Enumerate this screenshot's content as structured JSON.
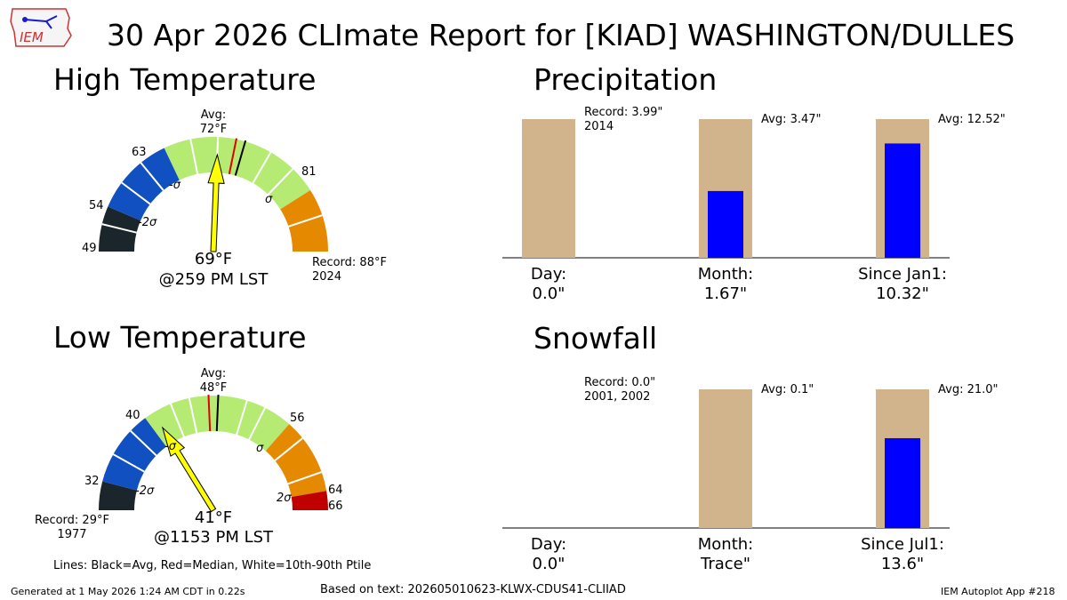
{
  "title": "30 Apr 2026 CLImate Report for [KIAD] WASHINGTON/DULLES",
  "logo_text": "IEM",
  "high": {
    "heading": "High Temperature",
    "avg_line1": "Avg:",
    "avg_line2": "72°F",
    "value_text": "69°F",
    "time_text": "@259 PM LST",
    "record_line1": "Record: 88°F",
    "record_line2": "2024",
    "ticks": [
      "49",
      "54",
      "63",
      "81"
    ],
    "sigma_labels": [
      "-2σ",
      "-σ",
      "σ"
    ],
    "gauge": {
      "min": 49,
      "max": 88,
      "avg": 72,
      "median": 71,
      "value": 69,
      "bands": [
        [
          49,
          54,
          "#1b262c"
        ],
        [
          54,
          63,
          "#1150c0"
        ],
        [
          63,
          81,
          "#b5eb72"
        ],
        [
          81,
          88,
          "#e58a00"
        ]
      ],
      "white": [
        52,
        57,
        60,
        66,
        69,
        75,
        78,
        84
      ]
    }
  },
  "low": {
    "heading": "Low Temperature",
    "avg_line1": "Avg:",
    "avg_line2": "48°F",
    "value_text": "41°F",
    "time_text": "@1153 PM LST",
    "record_line1": "Record: 29°F",
    "record_line2": "1977",
    "ticks": [
      "32",
      "40",
      "56",
      "64",
      "66"
    ],
    "sigma_labels": [
      "-2σ",
      "-σ",
      "σ",
      "2σ"
    ],
    "gauge": {
      "min": 29,
      "max": 66,
      "avg": 48,
      "median": 47,
      "value": 41,
      "bands": [
        [
          29,
          32,
          "#1b262c"
        ],
        [
          32,
          40,
          "#1150c0"
        ],
        [
          40,
          56,
          "#b5eb72"
        ],
        [
          56,
          64,
          "#e58a00"
        ],
        [
          64,
          66,
          "#c00000"
        ]
      ],
      "white": [
        35,
        38,
        43,
        45,
        51,
        53,
        58,
        62
      ]
    }
  },
  "precip": {
    "heading": "Precipitation",
    "day": {
      "label1": "Day:",
      "label2": "0.0\"",
      "record_line1": "Record: 3.99\"",
      "record_line2": "2014"
    },
    "month": {
      "label1": "Month:",
      "label2": "1.67\"",
      "avg": "Avg: 3.47\""
    },
    "since": {
      "label1": "Since Jan1:",
      "label2": "10.32\"",
      "avg": "Avg: 12.52\""
    }
  },
  "snow": {
    "heading": "Snowfall",
    "day": {
      "label1": "Day:",
      "label2": "0.0\"",
      "record_line1": "Record: 0.0\"",
      "record_line2": "2001, 2002"
    },
    "month": {
      "label1": "Month:",
      "label2": "Trace\"",
      "avg": "Avg: 0.1\""
    },
    "since": {
      "label1": "Since Jul1:",
      "label2": "13.6\"",
      "avg": "Avg: 21.0\""
    }
  },
  "legend_note": "Lines: Black=Avg, Red=Median, White=10th-90th Ptile",
  "footer": {
    "generated": "Generated at 1 May 2026 1:24 AM CDT in 0.22s",
    "based_on": "Based on text: 202605010623-KLWX-CDUS41-CLIIAD",
    "app": "IEM Autoplot App #218"
  },
  "chart_data": [
    {
      "type": "bar",
      "title": "Precipitation",
      "categories": [
        "Day",
        "Month",
        "Since Jan1"
      ],
      "series": [
        {
          "values": [
            3.99,
            3.47,
            12.52
          ]
        },
        {
          "values": [
            0.0,
            1.67,
            10.32
          ]
        }
      ]
    },
    {
      "type": "bar",
      "title": "Snowfall",
      "categories": [
        "Day",
        "Month",
        "Since Jul1"
      ],
      "series": [
        {
          "values": [
            0.0,
            0.1,
            21.0
          ]
        },
        {
          "values": [
            0.0,
            0.0,
            13.6
          ]
        }
      ]
    }
  ]
}
